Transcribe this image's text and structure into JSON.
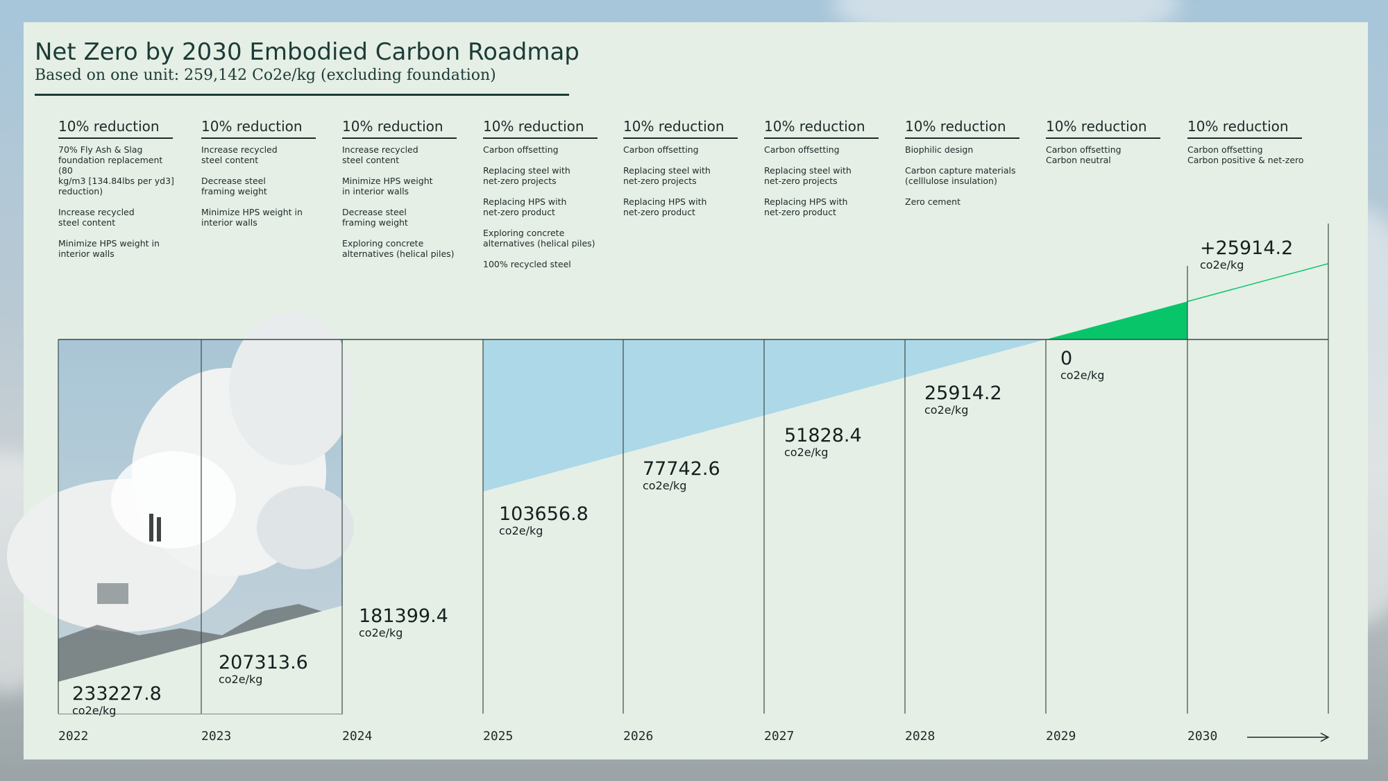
{
  "header": {
    "title": "Net Zero by 2030 Embodied Carbon Roadmap",
    "subtitle": "Based on one unit: 259,142 Co2e/kg (excluding foundation)"
  },
  "columns": [
    {
      "heading": "10% reduction",
      "items": [
        "70% Fly Ash & Slag\nfoundation replacement  (80\nkg/m3 [134.84lbs per yd3]\nreduction)",
        "Increase recycled\nsteel content",
        "Minimize HPS weight in\ninterior walls"
      ]
    },
    {
      "heading": "10% reduction",
      "items": [
        "Increase recycled\nsteel content",
        "Decrease steel\nframing weight",
        "Minimize HPS weight in\ninterior walls"
      ]
    },
    {
      "heading": "10% reduction",
      "items": [
        "Increase recycled\nsteel content",
        "Minimize HPS weight\nin interior walls",
        "Decrease steel\nframing weight",
        "Exploring concrete\nalternatives (helical piles)"
      ]
    },
    {
      "heading": "10% reduction",
      "items": [
        "Carbon offsetting",
        "Replacing steel with\nnet-zero projects",
        "Replacing HPS with\nnet-zero product",
        "Exploring concrete\nalternatives (helical piles)",
        "100% recycled steel"
      ]
    },
    {
      "heading": "10% reduction",
      "items": [
        "Carbon offsetting",
        "Replacing steel with\nnet-zero projects",
        "Replacing HPS with\nnet-zero product"
      ]
    },
    {
      "heading": "10% reduction",
      "items": [
        "Carbon offsetting",
        "Replacing steel with\nnet-zero projects",
        "Replacing HPS with\nnet-zero product"
      ]
    },
    {
      "heading": "10% reduction",
      "items": [
        "Biophilic design",
        "Carbon capture materials\n(celllulose insulation)",
        "Zero cement"
      ]
    },
    {
      "heading": "10% reduction",
      "items": [
        "Carbon offsetting\nCarbon neutral"
      ]
    },
    {
      "heading": "10% reduction",
      "items": [
        "Carbon offsetting\nCarbon positive & net-zero"
      ]
    }
  ],
  "chart_data": {
    "type": "area",
    "title": "Net Zero by 2030 Embodied Carbon Roadmap",
    "x": [
      "2022",
      "2023",
      "2024",
      "2025",
      "2026",
      "2027",
      "2028",
      "2029",
      "2030"
    ],
    "y": [
      233227.8,
      207313.6,
      181399.4,
      103656.8,
      77742.6,
      51828.4,
      25914.2,
      0,
      -25914.2
    ],
    "labels": [
      "233227.8",
      "207313.6",
      "181399.4",
      "103656.8",
      "77742.6",
      "51828.4",
      "25914.2",
      "0",
      "+25914.2"
    ],
    "unit_labels": [
      "co2e/kg",
      "co2e/kg",
      "co2e/kg",
      "co2e/kg",
      "co2e/kg",
      "co2e/kg",
      "co2e/kg",
      "co2e/kg",
      "co2e/kg"
    ],
    "colors": {
      "reduction": "#add8e8",
      "positive": "#08c56a",
      "line": "#3a4a46"
    }
  }
}
